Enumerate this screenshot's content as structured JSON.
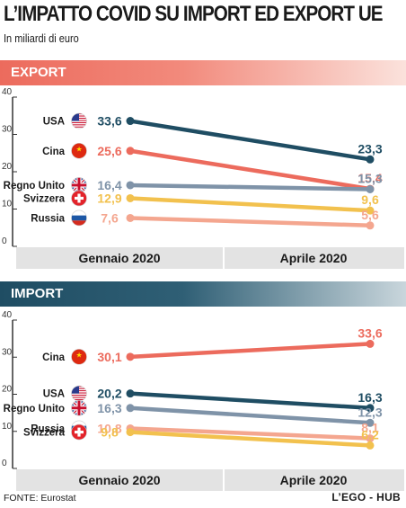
{
  "title": "L’IMPATTO COVID SU IMPORT ED EXPORT UE",
  "subtitle": "In miliardi di euro",
  "source": "FONTE: Eurostat",
  "brand": "L’EGO - HUB",
  "colors": {
    "USA": "#1f4d63",
    "Cina": "#ec6b5d",
    "Regno Unito": "#7f93a8",
    "Svizzera": "#f2c14e",
    "Russia": "#f4a68f"
  },
  "chart_data": [
    {
      "type": "line",
      "title": "EXPORT",
      "categories": [
        "Gennaio 2020",
        "Aprile 2020"
      ],
      "ylim": [
        0,
        40
      ],
      "yticks": [
        "0",
        "10",
        "20",
        "30",
        "40"
      ],
      "series": [
        {
          "name": "USA",
          "flag": "us-flag-icon",
          "values": [
            33.6,
            23.3
          ],
          "labels": [
            "33,6",
            "23,3"
          ]
        },
        {
          "name": "Cina",
          "flag": "china-flag-icon",
          "values": [
            25.6,
            15.4
          ],
          "labels": [
            "25,6",
            "15,4"
          ]
        },
        {
          "name": "Regno Unito",
          "flag": "uk-flag-icon",
          "values": [
            16.4,
            15.3
          ],
          "labels": [
            "16,4",
            "15,3"
          ]
        },
        {
          "name": "Svizzera",
          "flag": "switzerland-flag-icon",
          "values": [
            12.9,
            9.6
          ],
          "labels": [
            "12,9",
            "9,6"
          ]
        },
        {
          "name": "Russia",
          "flag": "russia-flag-icon",
          "values": [
            7.6,
            5.6
          ],
          "labels": [
            "7,6",
            "5,6"
          ]
        }
      ]
    },
    {
      "type": "line",
      "title": "IMPORT",
      "categories": [
        "Gennaio 2020",
        "Aprile 2020"
      ],
      "ylim": [
        0,
        40
      ],
      "yticks": [
        "0",
        "10",
        "20",
        "30",
        "40"
      ],
      "series": [
        {
          "name": "Cina",
          "flag": "china-flag-icon",
          "values": [
            30.1,
            33.6
          ],
          "labels": [
            "30,1",
            "33,6"
          ]
        },
        {
          "name": "USA",
          "flag": "us-flag-icon",
          "values": [
            20.2,
            16.3
          ],
          "labels": [
            "20,2",
            "16,3"
          ]
        },
        {
          "name": "Regno Unito",
          "flag": "uk-flag-icon",
          "values": [
            16.3,
            12.3
          ],
          "labels": [
            "16,3",
            "12,3"
          ]
        },
        {
          "name": "Russia",
          "flag": "russia-flag-icon",
          "values": [
            10.8,
            8.1
          ],
          "labels": [
            "10,8",
            "8,1"
          ]
        },
        {
          "name": "Svizzera",
          "flag": "switzerland-flag-icon",
          "values": [
            9.8,
            6.2
          ],
          "labels": [
            "9,8",
            "6,2"
          ]
        }
      ]
    }
  ]
}
